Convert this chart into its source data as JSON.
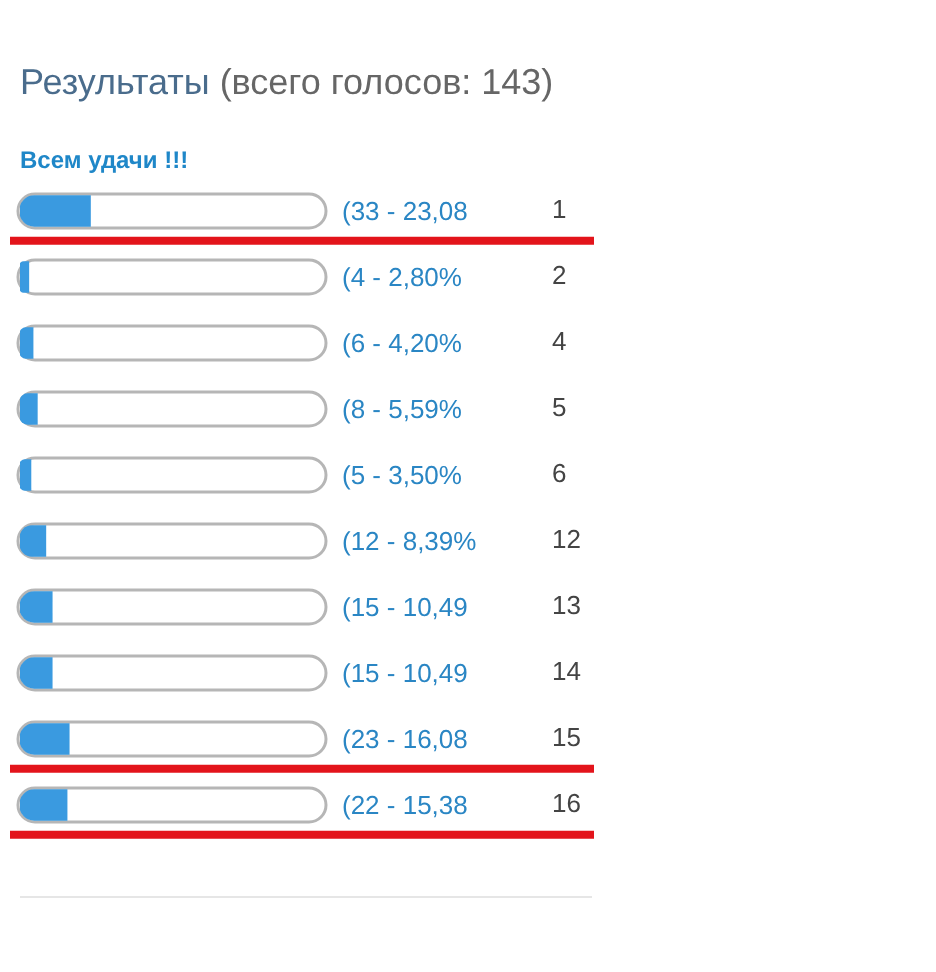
{
  "chart_data": {
    "type": "bar",
    "orientation": "horizontal",
    "title": "Результаты (всего голосов: 143)",
    "subtitle": "Всем удачи !!!",
    "categories": [
      "1",
      "2",
      "4",
      "5",
      "6",
      "12",
      "13",
      "14",
      "15",
      "16"
    ],
    "values": [
      33,
      4,
      6,
      8,
      5,
      12,
      15,
      15,
      23,
      22
    ],
    "value_labels": [
      "(33 - 23,08",
      "(4 - 2,80%",
      "(6 - 4,20%",
      "(8 - 5,59%",
      "(5 - 3,50%",
      "(12 - 8,39%",
      "(15 - 10,49",
      "(15 - 10,49",
      "(23 - 16,08",
      "(22 - 15,38"
    ],
    "ref_lines": [
      {
        "axis": "y",
        "value": "1",
        "color": "#e3141b"
      },
      {
        "axis": "y",
        "value": "15",
        "color": "#e3141b"
      },
      {
        "axis": "y",
        "value": "16",
        "color": "#e3141b"
      }
    ],
    "color": "#3a9ae0",
    "xlim": [
      0,
      143
    ],
    "tick_labels": "y",
    "grid": false,
    "legend": false
  }
}
